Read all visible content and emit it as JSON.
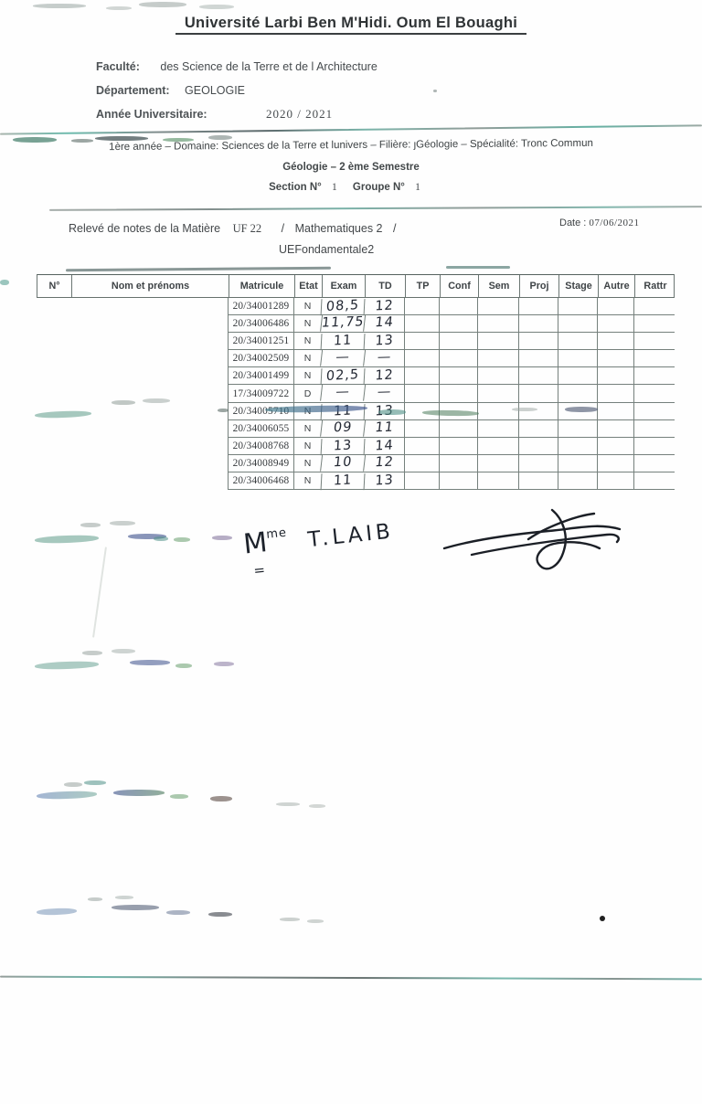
{
  "page": {
    "title": "Université Larbi Ben M'Hidi. Oum El Bouaghi",
    "faculty_label": "Faculté:",
    "faculty_value": "des Science de la Terre et de l Architecture",
    "department_label": "Département:",
    "department_value": "GEOLOGIE",
    "year_label": "Année Universitaire:",
    "year_value": "2020 /  2021"
  },
  "program_band": {
    "line1": "1ère année – Domaine: Sciences de la Terre et lunivers – Filière: ȷGéologie – Spécialité:  Tronc Commun",
    "line2": "Géologie – 2 ème Semestre",
    "section_label": "Section N°",
    "section_value": "1",
    "group_label": "Groupe N°",
    "group_value": "1"
  },
  "notes_header": {
    "releve_label": "Relevé de notes de la Matière",
    "module_code": "UF 22",
    "sep1": "/",
    "module_name": "Mathematiques  2",
    "sep2": "/",
    "module_line2": "UEFondamentale2",
    "date_label": "Date :",
    "date_value": "07/06/2021"
  },
  "table": {
    "headers": [
      "N°",
      "Nom et prénoms",
      "Matricule",
      "Etat",
      "Exam",
      "TD",
      "TP",
      "Conf",
      "Sem",
      "Proj",
      "Stage",
      "Autre",
      "Rattr"
    ],
    "rows": [
      {
        "matricule": "20/34001289",
        "etat": "N",
        "exam": "08,5",
        "td": "12"
      },
      {
        "matricule": "20/34006486",
        "etat": "N",
        "exam": "11,75",
        "td": "14"
      },
      {
        "matricule": "20/34001251",
        "etat": "N",
        "exam": "11",
        "td": "13"
      },
      {
        "matricule": "20/34002509",
        "etat": "N",
        "exam": "—",
        "td": "—"
      },
      {
        "matricule": "20/34001499",
        "etat": "N",
        "exam": "02,5",
        "td": "12"
      },
      {
        "matricule": "17/34009722",
        "etat": "D",
        "exam": "—",
        "td": "—"
      },
      {
        "matricule": "20/34005710",
        "etat": "N",
        "exam": "11",
        "td": "13"
      },
      {
        "matricule": "20/34006055",
        "etat": "N",
        "exam": "09",
        "td": "11"
      },
      {
        "matricule": "20/34008768",
        "etat": "N",
        "exam": "13",
        "td": "14"
      },
      {
        "matricule": "20/34008949",
        "etat": "N",
        "exam": "10",
        "td": "12"
      },
      {
        "matricule": "20/34006468",
        "etat": "N",
        "exam": "11",
        "td": "13"
      }
    ]
  },
  "signature": {
    "prefix": "M",
    "prefix_sup": "me",
    "underline": "=",
    "name": "T.LAIB"
  }
}
